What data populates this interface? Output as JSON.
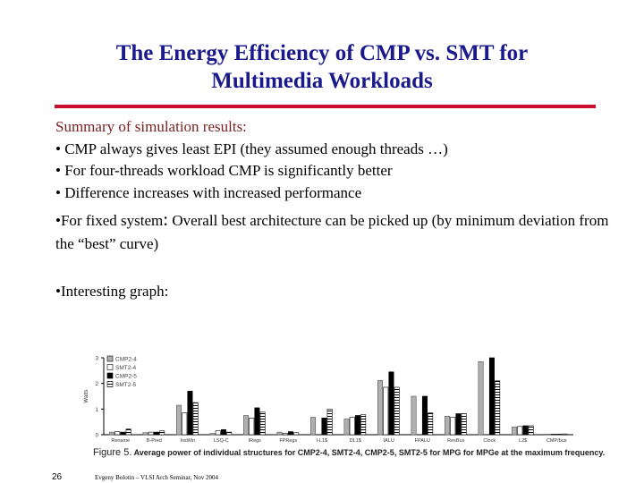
{
  "slide": {
    "title_line1": "The Energy Efficiency of CMP vs. SMT for",
    "title_line2": "Multimedia Workloads",
    "summary_heading": "Summary of simulation results:",
    "bullets": [
      "• CMP always gives least EPI (they assumed enough threads …)",
      "• For four-threads workload CMP is significantly better",
      "• Difference increases with increased performance"
    ],
    "fixed_system_lead": "•For fixed system",
    "fixed_system_colon": ":",
    "fixed_system_rest": " Overall best architecture can be picked up (by minimum deviation from the “best” curve)",
    "interesting": "•Interesting graph:",
    "figure_label": "Figure 5.",
    "figure_caption": " Average power of individual structures for CMP2-4, SMT2-4, CMP2-5, SMT2-5 for MPG for MPGe at the maximum frequency.",
    "page_number": "26",
    "footer": "Evgeny Bolotin – VLSI Arch Seminar, Nov 2004"
  },
  "chart_data": {
    "type": "bar",
    "ylabel": "Watts",
    "ylim": [
      0,
      3
    ],
    "yticks": [
      0,
      1,
      2,
      3
    ],
    "categories": [
      "Rename",
      "B-Pred",
      "InsWin",
      "LSQ-C",
      "IRegs",
      "FPRegs",
      "I-L1$",
      "DL1$",
      "IALU",
      "FPALU",
      "ResBus",
      "Clock",
      "L2$",
      "CMP/bus"
    ],
    "series": [
      {
        "name": "CMP2-4",
        "color": "#b0b0b0",
        "pattern": "solid",
        "values": [
          0.1,
          0.08,
          1.15,
          0.05,
          0.75,
          0.1,
          0.68,
          0.62,
          2.12,
          1.5,
          0.72,
          2.85,
          0.3,
          0.02
        ]
      },
      {
        "name": "SMT2-4",
        "color": "#ffffff",
        "pattern": "outline",
        "values": [
          0.12,
          0.1,
          0.85,
          0.15,
          0.65,
          0.05,
          0.0,
          0.68,
          1.85,
          0.0,
          0.68,
          0.0,
          0.32,
          0.02
        ]
      },
      {
        "name": "CMP2-5",
        "color": "#000000",
        "pattern": "solid",
        "values": [
          0.1,
          0.1,
          1.7,
          0.2,
          1.05,
          0.12,
          0.65,
          0.75,
          2.45,
          1.5,
          0.82,
          3.0,
          0.35,
          0.02
        ]
      },
      {
        "name": "SMT2-5",
        "color": "#ffffff",
        "pattern": "striped",
        "values": [
          0.22,
          0.15,
          1.25,
          0.1,
          0.88,
          0.08,
          1.0,
          0.78,
          1.85,
          0.85,
          0.82,
          2.1,
          0.35,
          0.03
        ]
      }
    ],
    "legend_position": "top-left"
  }
}
